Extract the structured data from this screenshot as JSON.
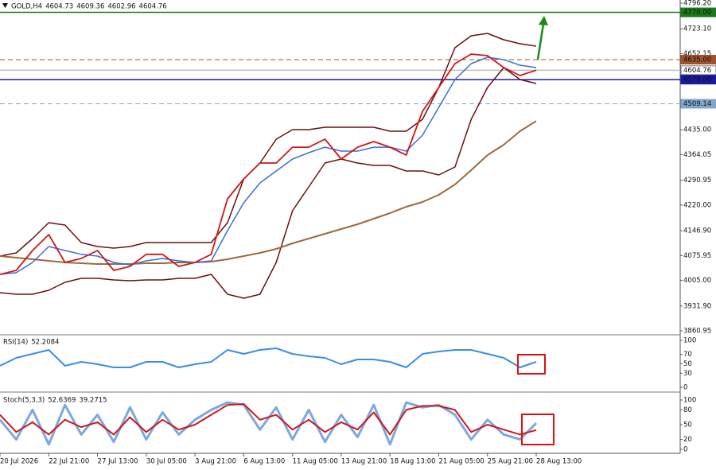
{
  "chart_data": [
    {
      "type": "line",
      "title": "GOLD,H4",
      "ohlc": [
        4604.73,
        4609.36,
        4602.96,
        4604.76
      ],
      "x": [
        0,
        5,
        10,
        15,
        20,
        25,
        30,
        35,
        40,
        45,
        50,
        55,
        60,
        65,
        70,
        75,
        80,
        85,
        90,
        95,
        100,
        105,
        110,
        115,
        120,
        125,
        130,
        135,
        140,
        145,
        150,
        155,
        160,
        165
      ],
      "xlim": [
        0,
        209.3
      ],
      "ylim": [
        3851.9,
        4805.28
      ],
      "yticks": [
        {
          "value": 4796.2,
          "label": "4796.20"
        },
        {
          "value": 4723.1,
          "label": "4723.10"
        },
        {
          "value": 4652.15,
          "label": "4652.15"
        },
        {
          "value": 4435,
          "label": "4435.00"
        },
        {
          "value": 4364.05,
          "label": "4364.05"
        },
        {
          "value": 4290.95,
          "label": "4290.95"
        },
        {
          "value": 4220,
          "label": "4220.00"
        },
        {
          "value": 4146.9,
          "label": "4146.90"
        },
        {
          "value": 4075.95,
          "label": "4075.95"
        },
        {
          "value": 4005,
          "label": "4005.00"
        },
        {
          "value": 3931.9,
          "label": "3931.90"
        },
        {
          "value": 3860.95,
          "label": "3860.95"
        }
      ],
      "levels": [
        {
          "value": 4770,
          "label": "4770.00",
          "color": "#1a7a1a",
          "style": "solid"
        },
        {
          "value": 4635,
          "label": "4635.00",
          "color": "#a0522d",
          "style": "dashed"
        },
        {
          "value": 4604.76,
          "label": "4604.76",
          "color": "#c0c0c0",
          "style": "solid"
        },
        {
          "value": 4578,
          "label": "4578.00",
          "color": "#1a1aa0",
          "style": "solid"
        },
        {
          "value": 4509.14,
          "label": "4509.14",
          "color": "#7fa7cc",
          "style": "dashed"
        }
      ],
      "series": [
        {
          "color": "#6b1010",
          "width": 1.5,
          "values": [
            4074.3,
            4083.4,
            4124.3,
            4169.7,
            4162.9,
            4112.9,
            4101.6,
            4097.0,
            4101.6,
            4112.9,
            4112.9,
            4112.9,
            4112.9,
            4112.9,
            4169.7,
            4294.5,
            4339.9,
            4408.0,
            4435.2,
            4435.2,
            4442.1,
            4442.1,
            4442.1,
            4442.1,
            4430.7,
            4430.7,
            4464.8,
            4555.6,
            4669.1,
            4703.1,
            4710.0,
            4691.8,
            4680.4,
            4673.6
          ]
        },
        {
          "color": "#6b1010",
          "width": 1.5,
          "values": [
            3969.9,
            3965.4,
            3965.4,
            3976.7,
            3999.4,
            4010.8,
            4010.8,
            4006.2,
            4003.9,
            4006.2,
            4006.2,
            4010.8,
            4010.8,
            4022.1,
            3965.4,
            3954.0,
            3965.4,
            4056.2,
            4203.7,
            4271.8,
            4339.9,
            4351.3,
            4339.9,
            4333.1,
            4333.1,
            4317.2,
            4317.2,
            4305.9,
            4328.6,
            4464.8,
            4555.6,
            4612.3,
            4578.3,
            4566.9
          ]
        },
        {
          "color": "#9c6a3c",
          "width": 2,
          "values": [
            4074.3,
            4069.8,
            4065.3,
            4060.7,
            4056.2,
            4053.9,
            4051.6,
            4051.6,
            4051.6,
            4053.9,
            4053.9,
            4056.2,
            4056.2,
            4058.4,
            4065.3,
            4074.3,
            4083.4,
            4094.7,
            4110.6,
            4124.3,
            4137.9,
            4151.5,
            4165.1,
            4181.0,
            4196.9,
            4215.1,
            4228.7,
            4249.2,
            4278.7,
            4319.5,
            4362.6,
            4392.1,
            4430.7,
            4459.8
          ]
        },
        {
          "color": "#3a6fd8",
          "width": 1.5,
          "values": [
            4022.1,
            4026.8,
            4056.2,
            4101.6,
            4090.2,
            4079.3,
            4074.3,
            4056.2,
            4049.4,
            4060.7,
            4067.5,
            4060.7,
            4056.2,
            4060.7,
            4147.0,
            4226.4,
            4283.2,
            4317.2,
            4351.3,
            4369.4,
            4385.2,
            4373.9,
            4373.9,
            4385.2,
            4385.2,
            4373.9,
            4419.4,
            4498.9,
            4578.3,
            4623.7,
            4641.8,
            4635.1,
            4619.1,
            4612.3
          ]
        },
        {
          "color": "#d01818",
          "width": 1.8,
          "values": [
            4022.1,
            4033.5,
            4090.2,
            4135.6,
            4056.2,
            4067.5,
            4090.2,
            4033.5,
            4044.8,
            4079.3,
            4079.3,
            4044.8,
            4056.2,
            4079.3,
            4237.8,
            4294.5,
            4339.9,
            4339.9,
            4385.2,
            4385.2,
            4408.0,
            4351.3,
            4385.2,
            4401.2,
            4385.2,
            4362.6,
            4487.5,
            4555.6,
            4623.7,
            4650.9,
            4646.4,
            4612.3,
            4589.6,
            4604.8
          ]
        }
      ]
    },
    {
      "type": "line",
      "title": "RSI(14)",
      "value": 52.2084,
      "x": [
        0,
        5,
        10,
        15,
        20,
        25,
        30,
        35,
        40,
        45,
        50,
        55,
        60,
        65,
        70,
        75,
        80,
        85,
        90,
        95,
        100,
        105,
        110,
        115,
        120,
        125,
        130,
        135,
        140,
        145,
        150,
        155,
        160,
        165
      ],
      "xlim": [
        0,
        209.3
      ],
      "ylim": [
        -5.1,
        110.2
      ],
      "yticks": [
        100,
        70,
        50,
        30,
        0
      ],
      "series": [
        {
          "color": "#3a8ee6",
          "width": 2,
          "values": [
            45.8,
            62.7,
            71.2,
            79.7,
            45.8,
            54.2,
            49.2,
            42.4,
            42.4,
            54.2,
            54.2,
            42.4,
            49.2,
            54.2,
            79.7,
            71.2,
            79.7,
            83.1,
            71.2,
            66.1,
            62.7,
            49.2,
            59.3,
            59.3,
            54.2,
            42.4,
            71.2,
            76.3,
            79.7,
            79.7,
            71.2,
            62.7,
            42.4,
            54.2
          ]
        }
      ]
    },
    {
      "type": "line",
      "title": "Stoch(5,3,3)",
      "main": 52.6369,
      "signal": 39.2715,
      "x": [
        0,
        5,
        10,
        15,
        20,
        25,
        30,
        35,
        40,
        45,
        50,
        55,
        60,
        65,
        70,
        75,
        80,
        85,
        90,
        95,
        100,
        105,
        110,
        115,
        120,
        125,
        130,
        135,
        140,
        145,
        150,
        155,
        160,
        165
      ],
      "xlim": [
        0,
        209.3
      ],
      "ylim": [
        -8.1,
        112.9
      ],
      "yticks": [
        100,
        80,
        50,
        20,
        0
      ],
      "xticks": [
        {
          "value": 0,
          "label": "20 Jul 2026"
        },
        {
          "value": 15,
          "label": "22 Jul 21:00"
        },
        {
          "value": 30,
          "label": "27 Jul 13:00"
        },
        {
          "value": 45,
          "label": "30 Jul 05:00"
        },
        {
          "value": 60,
          "label": "3 Aug 21:00"
        },
        {
          "value": 75,
          "label": "6 Aug 13:00"
        },
        {
          "value": 90,
          "label": "11 Aug 05:00"
        },
        {
          "value": 105,
          "label": "13 Aug 21:00"
        },
        {
          "value": 120,
          "label": "18 Aug 13:00"
        },
        {
          "value": 135,
          "label": "21 Aug 05:00"
        },
        {
          "value": 150,
          "label": "25 Aug 21:00"
        },
        {
          "value": 165,
          "label": "28 Aug 13:00"
        }
      ],
      "series": [
        {
          "color": "#7aa8e0",
          "width": 3,
          "values": [
            60,
            20,
            80,
            10,
            90,
            30,
            70,
            15,
            85,
            20,
            75,
            30,
            60,
            80,
            95,
            90,
            40,
            85,
            20,
            80,
            15,
            70,
            25,
            90,
            10,
            95,
            85,
            90,
            70,
            20,
            60,
            30,
            20,
            53
          ]
        },
        {
          "color": "#d01818",
          "width": 2,
          "values": [
            70,
            35,
            55,
            30,
            60,
            45,
            55,
            30,
            65,
            35,
            60,
            40,
            50,
            70,
            90,
            92,
            60,
            70,
            40,
            60,
            35,
            55,
            40,
            75,
            30,
            80,
            88,
            88,
            80,
            35,
            50,
            40,
            30,
            39
          ]
        }
      ]
    }
  ]
}
